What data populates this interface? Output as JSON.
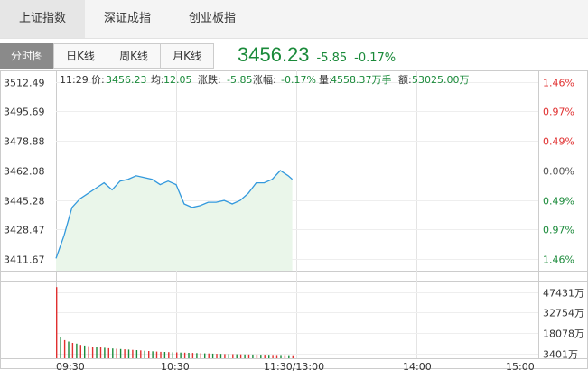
{
  "top_tabs": [
    {
      "label": "上证指数",
      "active": true
    },
    {
      "label": "深证成指",
      "active": false
    },
    {
      "label": "创业板指",
      "active": false
    }
  ],
  "sub_tabs": [
    {
      "label": "分时图",
      "active": true
    },
    {
      "label": "日K线",
      "active": false
    },
    {
      "label": "周K线",
      "active": false
    },
    {
      "label": "月K线",
      "active": false
    }
  ],
  "quote": {
    "price": "3456.23",
    "change": "-5.85",
    "change_pct": "-0.17%"
  },
  "info_bar": {
    "time": "11:29",
    "price_label": "价:",
    "price": "3456.23",
    "avg_label": "均:",
    "avg": "12.05",
    "change_label": "涨跌:",
    "change": "-5.85",
    "pct_label": "涨幅:",
    "pct": "-0.17%",
    "volume_label": "量:",
    "volume": "4558.37万手",
    "amount_label": "额:",
    "amount": "53025.00万"
  },
  "colors": {
    "up": "#e03030",
    "down": "#1a8a3a",
    "line": "#3399dd",
    "fill": "#eaf6ea"
  },
  "chart_data": [
    {
      "type": "line",
      "y_tick_labels": [
        "3512.49",
        "3495.69",
        "3478.88",
        "3462.08",
        "3445.28",
        "3428.47",
        "3411.67"
      ],
      "y_ticks": [
        3512.49,
        3495.69,
        3478.88,
        3462.08,
        3445.28,
        3428.47,
        3411.67
      ],
      "right_tick_labels": [
        "1.46%",
        "0.97%",
        "0.49%",
        "0.00%",
        "0.49%",
        "0.97%",
        "1.46%"
      ],
      "reference": 3462.08,
      "ylim": [
        3405.0,
        3519.0
      ],
      "x_tick_labels": [
        "09:30",
        "10:30",
        "11:30/13:00",
        "14:00",
        "15:00"
      ],
      "x_minutes": [
        0,
        4,
        8,
        12,
        16,
        20,
        24,
        28,
        32,
        36,
        40,
        44,
        48,
        52,
        56,
        60,
        64,
        68,
        72,
        76,
        80,
        84,
        88,
        92,
        96,
        100,
        104,
        108,
        112,
        116,
        118
      ],
      "values": [
        3412,
        3425,
        3441,
        3446,
        3449,
        3452,
        3455,
        3451,
        3456,
        3457,
        3459,
        3458,
        3457,
        3454,
        3456,
        3454,
        3443,
        3441,
        3442,
        3444,
        3444,
        3445,
        3443,
        3445,
        3449,
        3455,
        3455,
        3457,
        3462,
        3459,
        3457
      ]
    },
    {
      "type": "bar",
      "y_tick_labels": [
        "47431万",
        "32754万",
        "18078万",
        "3401万"
      ],
      "y_ticks": [
        47431,
        32754,
        18078,
        3401
      ],
      "ylim": [
        0,
        55000
      ],
      "x_minutes": [
        0,
        2,
        4,
        6,
        8,
        10,
        12,
        14,
        16,
        18,
        20,
        22,
        24,
        26,
        28,
        30,
        32,
        34,
        36,
        38,
        40,
        42,
        44,
        46,
        48,
        50,
        52,
        54,
        56,
        58,
        60,
        62,
        64,
        66,
        68,
        70,
        72,
        74,
        76,
        78,
        80,
        82,
        84,
        86,
        88,
        90,
        92,
        94,
        96,
        98,
        100,
        102,
        104,
        106,
        108,
        110,
        112,
        114,
        116,
        118
      ],
      "values": [
        51000,
        15500,
        13000,
        12000,
        11000,
        10500,
        9600,
        9100,
        8700,
        8400,
        8100,
        7800,
        7500,
        7200,
        7000,
        6800,
        6600,
        6400,
        6200,
        6000,
        5800,
        5600,
        5400,
        5200,
        5000,
        4800,
        4600,
        4500,
        4400,
        4300,
        4200,
        4100,
        4000,
        3900,
        3800,
        3700,
        3600,
        3500,
        3400,
        3300,
        3200,
        3100,
        3000,
        2950,
        2900,
        2850,
        2800,
        2750,
        2700,
        2650,
        2600,
        2550,
        2500,
        2450,
        2400,
        2350,
        2300,
        2250,
        2200,
        2150
      ],
      "up": [
        true,
        false,
        true,
        false,
        true,
        false,
        true,
        false,
        true,
        true,
        false,
        true,
        false,
        true,
        false,
        true,
        false,
        true,
        false,
        true,
        false,
        true,
        false,
        true,
        false,
        true,
        true,
        false,
        true,
        false,
        true,
        false,
        true,
        false,
        true,
        false,
        true,
        false,
        true,
        false,
        true,
        false,
        true,
        false,
        true,
        false,
        true,
        false,
        true,
        false,
        true,
        false,
        true,
        false,
        true,
        true,
        false,
        true,
        false,
        true
      ]
    }
  ]
}
